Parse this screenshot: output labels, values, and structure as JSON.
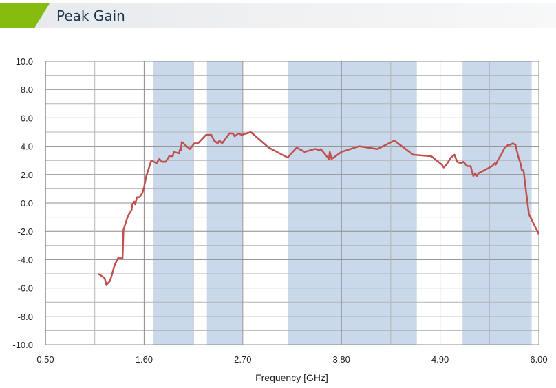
{
  "header": {
    "title": "Peak Gain",
    "accent_color": "#86bc0e"
  },
  "chart_data": {
    "type": "line",
    "title": "Peak Gain",
    "xlabel": "Frequency [GHz]",
    "ylabel": "",
    "xlim": [
      0.5,
      6.0
    ],
    "ylim": [
      -10,
      10
    ],
    "xticks": [
      "0.50",
      "1.60",
      "2.70",
      "3.80",
      "4.90",
      "6.00"
    ],
    "yticks": [
      "10.0",
      "8.0",
      "6.0",
      "4.0",
      "2.0",
      "0.0",
      "-2.0",
      "-4.0",
      "-6.0",
      "-8.0",
      "-10.0"
    ],
    "grid": true,
    "line_color": "#c0504d",
    "band_color": "#c9d8ea",
    "shaded_bands": [
      [
        1.7,
        2.15
      ],
      [
        2.3,
        2.69
      ],
      [
        3.2,
        4.64
      ],
      [
        5.15,
        5.92
      ]
    ],
    "series": [
      {
        "x": [
          1.09,
          1.16,
          1.18,
          1.22,
          1.24,
          1.27,
          1.31,
          1.34,
          1.36,
          1.37,
          1.41,
          1.43,
          1.46,
          1.47,
          1.49,
          1.5,
          1.52,
          1.55,
          1.58,
          1.6,
          1.62,
          1.64,
          1.68,
          1.74,
          1.77,
          1.8,
          1.84,
          1.88,
          1.92,
          1.93,
          1.99,
          2.0,
          2.01,
          2.02,
          2.11,
          2.16,
          2.2,
          2.29,
          2.35,
          2.38,
          2.42,
          2.44,
          2.47,
          2.55,
          2.59,
          2.61,
          2.65,
          2.69,
          2.79,
          2.99,
          3.2,
          3.3,
          3.39,
          3.5,
          3.52,
          3.55,
          3.57,
          3.66,
          3.67,
          3.69,
          3.8,
          4.0,
          4.2,
          4.39,
          4.6,
          4.8,
          4.92,
          4.94,
          4.97,
          5.02,
          5.06,
          5.09,
          5.13,
          5.16,
          5.2,
          5.24,
          5.26,
          5.27,
          5.29,
          5.31,
          5.33,
          5.48,
          5.51,
          5.52,
          5.55,
          5.58,
          5.62,
          5.66,
          5.68,
          5.71,
          5.74,
          5.77,
          5.8,
          5.81,
          5.83,
          5.85,
          5.89,
          6.0
        ],
        "y": [
          -5.0,
          -5.3,
          -5.8,
          -5.5,
          -5.1,
          -4.4,
          -3.9,
          -3.9,
          -3.9,
          -1.9,
          -1.1,
          -0.8,
          -0.5,
          -0.1,
          0.1,
          -0.1,
          0.4,
          0.4,
          0.7,
          1.1,
          1.8,
          2.2,
          3.0,
          2.8,
          3.1,
          2.9,
          2.9,
          3.3,
          3.3,
          3.6,
          3.5,
          3.8,
          3.7,
          4.3,
          3.8,
          4.2,
          4.2,
          4.8,
          4.8,
          4.4,
          4.2,
          4.4,
          4.2,
          4.9,
          4.9,
          4.7,
          4.9,
          4.8,
          5.0,
          3.9,
          3.2,
          3.9,
          3.6,
          3.8,
          3.8,
          3.7,
          3.8,
          3.1,
          3.6,
          3.1,
          3.6,
          4.0,
          3.8,
          4.4,
          3.4,
          3.3,
          2.7,
          2.5,
          2.7,
          3.2,
          3.4,
          2.9,
          2.8,
          2.9,
          2.6,
          2.6,
          2.1,
          1.9,
          2.1,
          1.9,
          2.1,
          2.6,
          2.8,
          2.7,
          3.1,
          3.4,
          3.9,
          4.1,
          4.1,
          4.2,
          4.1,
          3.3,
          2.7,
          2.3,
          2.3,
          1.2,
          -0.8,
          -2.2
        ]
      }
    ]
  }
}
